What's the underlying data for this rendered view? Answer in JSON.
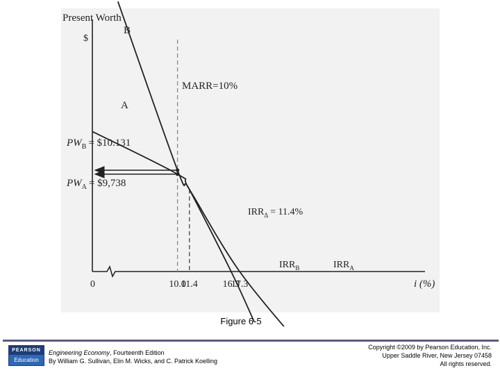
{
  "chart_data": {
    "type": "line",
    "title": "",
    "ylabel": "Present Worth",
    "ylabel_unit": "$",
    "xlabel": "i (%)",
    "origin_label": "0",
    "x_ticks": [
      "10.0",
      "11.4",
      "16.3",
      "17.3"
    ],
    "series": [
      {
        "name": "A",
        "label": "A",
        "points": [
          [
            0,
            14.0
          ],
          [
            10.0,
            9.738
          ],
          [
            11.4,
            8.2
          ],
          [
            17.3,
            0
          ],
          [
            25,
            -8.0
          ]
        ]
      },
      {
        "name": "B",
        "label": "B",
        "points": [
          [
            3,
            27.0
          ],
          [
            10.0,
            10.131
          ],
          [
            11.4,
            8.2
          ],
          [
            16.3,
            0
          ],
          [
            19,
            -5.0
          ]
        ]
      }
    ],
    "annotations": {
      "marr": "MARR=10%",
      "marr_rate": 10.0,
      "pw_b": {
        "prefix": "PW",
        "sub": "B",
        "value": "= $10.131"
      },
      "pw_a": {
        "prefix": "PW",
        "sub": "A",
        "value": "= $9,738"
      },
      "irr_delta": {
        "prefix": "IRR",
        "sub": "Δ",
        "value": "= 11.4%"
      },
      "irr_b": {
        "prefix": "IRR",
        "sub": "B"
      },
      "irr_a": {
        "prefix": "IRR",
        "sub": "A"
      }
    }
  },
  "caption": "Figure 6-5",
  "footer": {
    "logo_top": "PEARSON",
    "logo_bottom": "Education",
    "book_title": "Engineering Economy",
    "book_edition": ", Fourteenth Edition",
    "authors": "By William G. Sullivan, Elin M. Wicks, and C. Patrick Koelling",
    "copyright_line1": "Copyright ©2009 by Pearson Education, Inc.",
    "copyright_line2": "Upper Saddle River, New Jersey 07458",
    "copyright_line3": "All rights reserved."
  },
  "colors": {
    "ink": "#222222",
    "footer_bar": "#5a5a8a",
    "pearson_blue": "#1c3d7a"
  }
}
